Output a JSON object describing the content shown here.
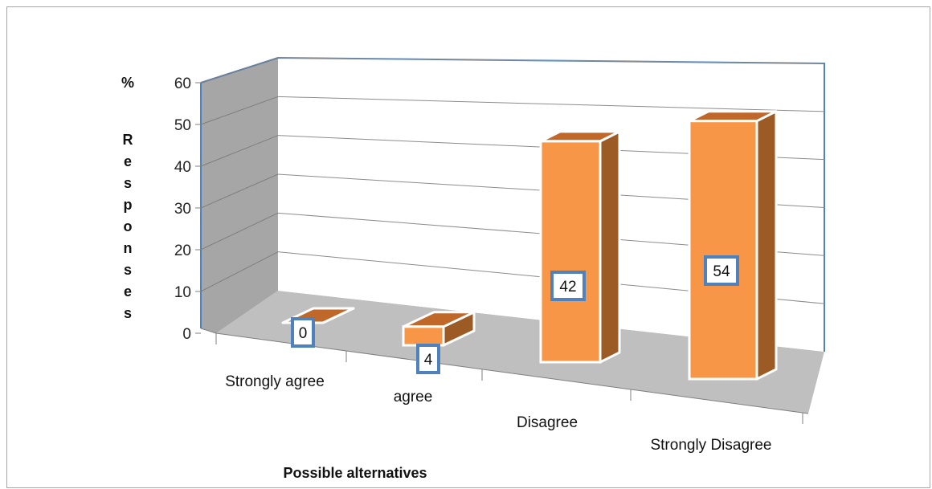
{
  "chart_data": {
    "type": "bar",
    "categories": [
      "Strongly agree",
      "agree",
      "Disagree",
      "Strongly Disagree"
    ],
    "values": [
      0,
      4,
      42,
      54
    ],
    "data_labels": [
      "0",
      "4",
      "42",
      "54"
    ],
    "xlabel": "Possible alternatives",
    "ylabel": "Responses",
    "unit_symbol": "%",
    "ylim": [
      0,
      60
    ],
    "yticks": [
      "0",
      "10",
      "20",
      "30",
      "40",
      "50",
      "60"
    ],
    "grid": true,
    "legend": "none",
    "style": "3d-column",
    "colors": {
      "bar_front": "#f79646",
      "bar_top": "#c0672a",
      "bar_side": "#9c5a24",
      "label_border": "#4f81bd",
      "plane_border": "#4f81bd",
      "floor": "#bfbfbf",
      "side_wall": "#a6a6a6"
    }
  }
}
